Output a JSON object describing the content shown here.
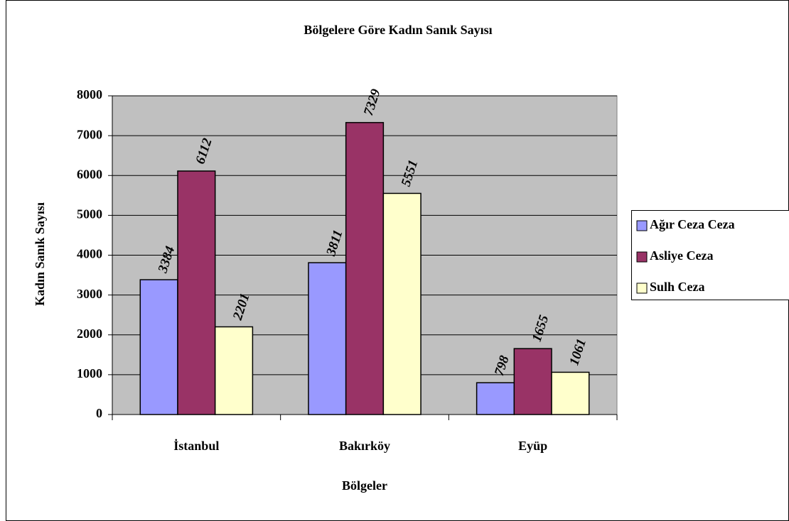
{
  "chart_data": {
    "type": "bar",
    "title": "Bölgelere Göre Kadın Sanık Sayısı",
    "x_label": "Bölgeler",
    "y_label": "Kadın Sanık Sayısı",
    "categories": [
      "İstanbul",
      "Bakırköy",
      "Eyüp"
    ],
    "series": [
      {
        "name": "Ağır Ceza Ceza",
        "color": "#9999ff",
        "values": [
          3384,
          3811,
          798
        ]
      },
      {
        "name": "Asliye Ceza",
        "color": "#993366",
        "values": [
          6112,
          7329,
          1655
        ]
      },
      {
        "name": "Sulh Ceza",
        "color": "#ffffcc",
        "values": [
          2201,
          5551,
          1061
        ]
      }
    ],
    "ylim": [
      0,
      8000
    ],
    "yticks": [
      0,
      1000,
      2000,
      3000,
      4000,
      5000,
      6000,
      7000,
      8000
    ],
    "grid": true,
    "legend": "right",
    "plot_background": "#c0c0c0"
  }
}
